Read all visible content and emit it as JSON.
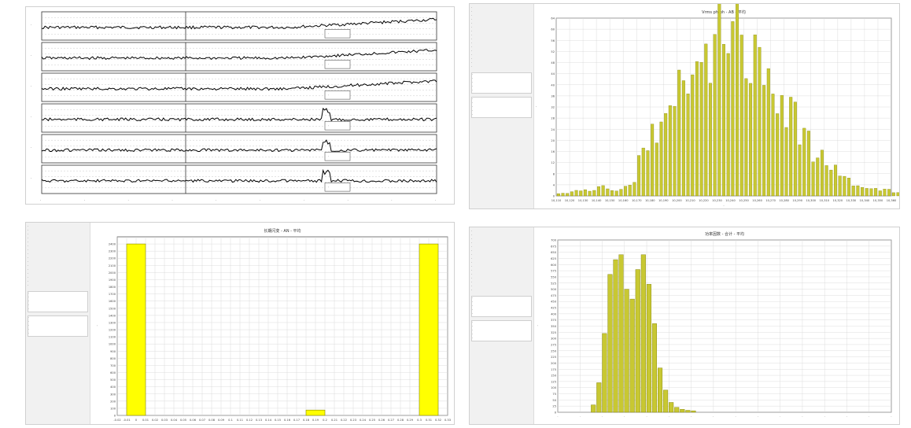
{
  "panels": {
    "voltage_trends": {
      "strip_count": 6,
      "axis_placeholder": "·",
      "annotation": "·"
    },
    "voltage_histogram": {
      "title": "Vrms ph-ph - AB - 平均",
      "xlabel": "·",
      "ylabel": "·",
      "sidebar_rows": 16,
      "table_rows": 5
    },
    "flicker_histogram": {
      "title": "长期闪变 - AN - 平均",
      "ylabel": "·",
      "sidebar_rows": 16,
      "table_rows": 5
    },
    "pf_histogram": {
      "title": "功率因数 - 合计 - 平均",
      "ylabel": "·",
      "sidebar_rows": 16,
      "table_rows": 5
    }
  },
  "chart_data": [
    {
      "type": "line",
      "series": [
        {
          "trend": "rise",
          "spike": false
        },
        {
          "trend": "rise",
          "spike": false
        },
        {
          "trend": "rise",
          "spike": false
        },
        {
          "trend": "flat",
          "spike": true
        },
        {
          "trend": "flat",
          "spike": true
        },
        {
          "trend": "flat",
          "spike": true
        }
      ],
      "grid": true,
      "colors": {
        "line": "#000000",
        "grid": "#bbbbbb"
      }
    },
    {
      "type": "bar",
      "title": "Vrms ph-ph - AB - 平均",
      "categories": [
        "10,110",
        "10,120",
        "10,130",
        "10,140",
        "10,150",
        "10,160",
        "10,170",
        "10,180",
        "10,190",
        "10,200",
        "10,210",
        "10,220",
        "10,230",
        "10,240",
        "10,250",
        "10,260",
        "10,270",
        "10,280",
        "10,290",
        "10,300",
        "10,310",
        "10,320",
        "10,330",
        "10,340",
        "10,350",
        "10,360"
      ],
      "values": [
        1,
        2,
        2,
        3,
        2,
        4,
        14,
        22,
        30,
        38,
        44,
        50,
        58,
        60,
        52,
        44,
        38,
        32,
        22,
        14,
        10,
        6,
        4,
        3,
        2,
        1
      ],
      "ylim": [
        0,
        64
      ],
      "grid": true,
      "colors": {
        "bar": "#c8c832",
        "edge": "#7a7a00"
      }
    },
    {
      "type": "bar",
      "title": "长期闪变 - AN - 平均",
      "categories": [
        "-0.02",
        "-0.01",
        "0",
        "0.01",
        "0.02",
        "0.03",
        "0.04",
        "0.05",
        "0.06",
        "0.07",
        "0.08",
        "0.09",
        "0.1",
        "0.11",
        "0.12",
        "0.13",
        "0.14",
        "0.15",
        "0.16",
        "0.17",
        "0.18",
        "0.19",
        "0.2",
        "0.21",
        "0.22",
        "0.23",
        "0.24",
        "0.25",
        "0.26",
        "0.27",
        "0.28",
        "0.29",
        "0.3",
        "0.31",
        "0.32",
        "0.33"
      ],
      "bars": [
        {
          "from": -0.01,
          "to": 0.01,
          "value": 2400
        },
        {
          "from": 0.18,
          "to": 0.2,
          "value": 75
        },
        {
          "from": 0.3,
          "to": 0.32,
          "value": 2400
        }
      ],
      "ylim": [
        0,
        2500
      ],
      "yticks": [
        0,
        100,
        200,
        300,
        400,
        500,
        600,
        700,
        800,
        900,
        1000,
        1100,
        1200,
        1300,
        1400,
        1500,
        1600,
        1700,
        1800,
        1900,
        2000,
        2100,
        2200,
        2300,
        2400
      ],
      "grid": true,
      "colors": {
        "bar": "#ffff00",
        "edge": "#888800"
      }
    },
    {
      "type": "bar",
      "title": "功率因数 - 合计 - 平均",
      "x": [
        0.36,
        0.37,
        0.38,
        0.39,
        0.4,
        0.41,
        0.42,
        0.43,
        0.44,
        0.45,
        0.46,
        0.47,
        0.48,
        0.49,
        0.5,
        0.51,
        0.52,
        0.53,
        0.54
      ],
      "values": [
        30,
        120,
        320,
        560,
        620,
        640,
        500,
        460,
        580,
        640,
        520,
        360,
        180,
        90,
        40,
        20,
        12,
        8,
        6
      ],
      "ylim": [
        0,
        700
      ],
      "grid": true,
      "colors": {
        "bar": "#c8c832",
        "edge": "#7a7a00"
      }
    }
  ]
}
